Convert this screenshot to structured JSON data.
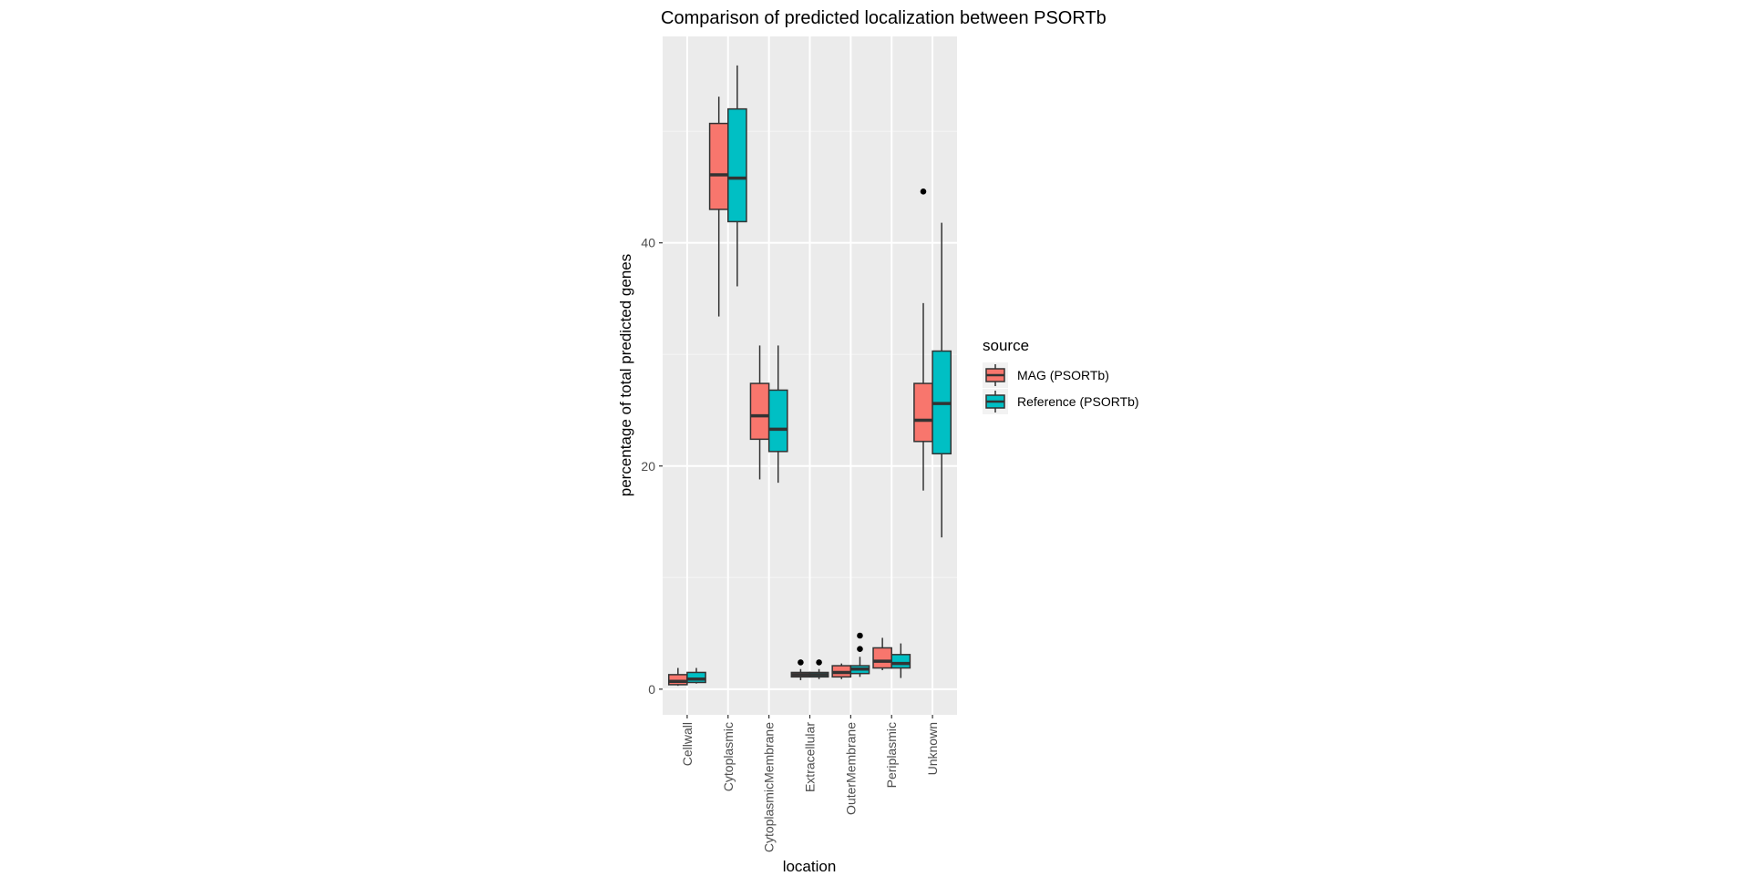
{
  "chart_data": {
    "type": "boxplot",
    "title": "Comparison of predicted localization between PSORTb",
    "xlabel": "location",
    "ylabel": "percentage of total predicted genes",
    "ylim": [
      -2.3,
      58.5
    ],
    "y_ticks": [
      0,
      20,
      40
    ],
    "grid": true,
    "legend": {
      "title": "source",
      "placement": "right"
    },
    "categories": [
      "Cellwall",
      "Cytoplasmic",
      "CytoplasmicMembrane",
      "Extracellular",
      "OuterMembrane",
      "Periplasmic",
      "Unknown"
    ],
    "series": [
      {
        "name": "MAG (PSORTb)",
        "color": "#F8766D",
        "boxes": [
          {
            "min": 0.3,
            "q1": 0.4,
            "median": 0.7,
            "q3": 1.3,
            "max": 1.9,
            "outliers": []
          },
          {
            "min": 33.4,
            "q1": 43.0,
            "median": 46.1,
            "q3": 50.7,
            "max": 53.1,
            "outliers": []
          },
          {
            "min": 18.8,
            "q1": 22.4,
            "median": 24.5,
            "q3": 27.4,
            "max": 30.8,
            "outliers": []
          },
          {
            "min": 0.8,
            "q1": 1.1,
            "median": 1.3,
            "q3": 1.5,
            "max": 1.8,
            "outliers": [
              2.4
            ]
          },
          {
            "min": 0.9,
            "q1": 1.1,
            "median": 1.5,
            "q3": 2.1,
            "max": 2.3,
            "outliers": []
          },
          {
            "min": 1.7,
            "q1": 1.9,
            "median": 2.5,
            "q3": 3.7,
            "max": 4.6,
            "outliers": []
          },
          {
            "min": 17.8,
            "q1": 22.2,
            "median": 24.1,
            "q3": 27.4,
            "max": 34.6,
            "outliers": [
              44.6
            ]
          }
        ]
      },
      {
        "name": "Reference (PSORTb)",
        "color": "#00BFC4",
        "boxes": [
          {
            "min": 0.5,
            "q1": 0.6,
            "median": 0.9,
            "q3": 1.5,
            "max": 1.9,
            "outliers": []
          },
          {
            "min": 36.1,
            "q1": 41.9,
            "median": 45.8,
            "q3": 52.0,
            "max": 55.9,
            "outliers": []
          },
          {
            "min": 18.5,
            "q1": 21.3,
            "median": 23.3,
            "q3": 26.8,
            "max": 30.8,
            "outliers": []
          },
          {
            "min": 0.9,
            "q1": 1.1,
            "median": 1.3,
            "q3": 1.5,
            "max": 1.8,
            "outliers": [
              2.4
            ]
          },
          {
            "min": 1.1,
            "q1": 1.4,
            "median": 1.8,
            "q3": 2.1,
            "max": 2.9,
            "outliers": [
              3.6,
              4.8
            ]
          },
          {
            "min": 1.0,
            "q1": 1.9,
            "median": 2.3,
            "q3": 3.1,
            "max": 4.1,
            "outliers": []
          },
          {
            "min": 13.6,
            "q1": 21.1,
            "median": 25.6,
            "q3": 30.3,
            "max": 41.8,
            "outliers": []
          }
        ]
      }
    ]
  }
}
